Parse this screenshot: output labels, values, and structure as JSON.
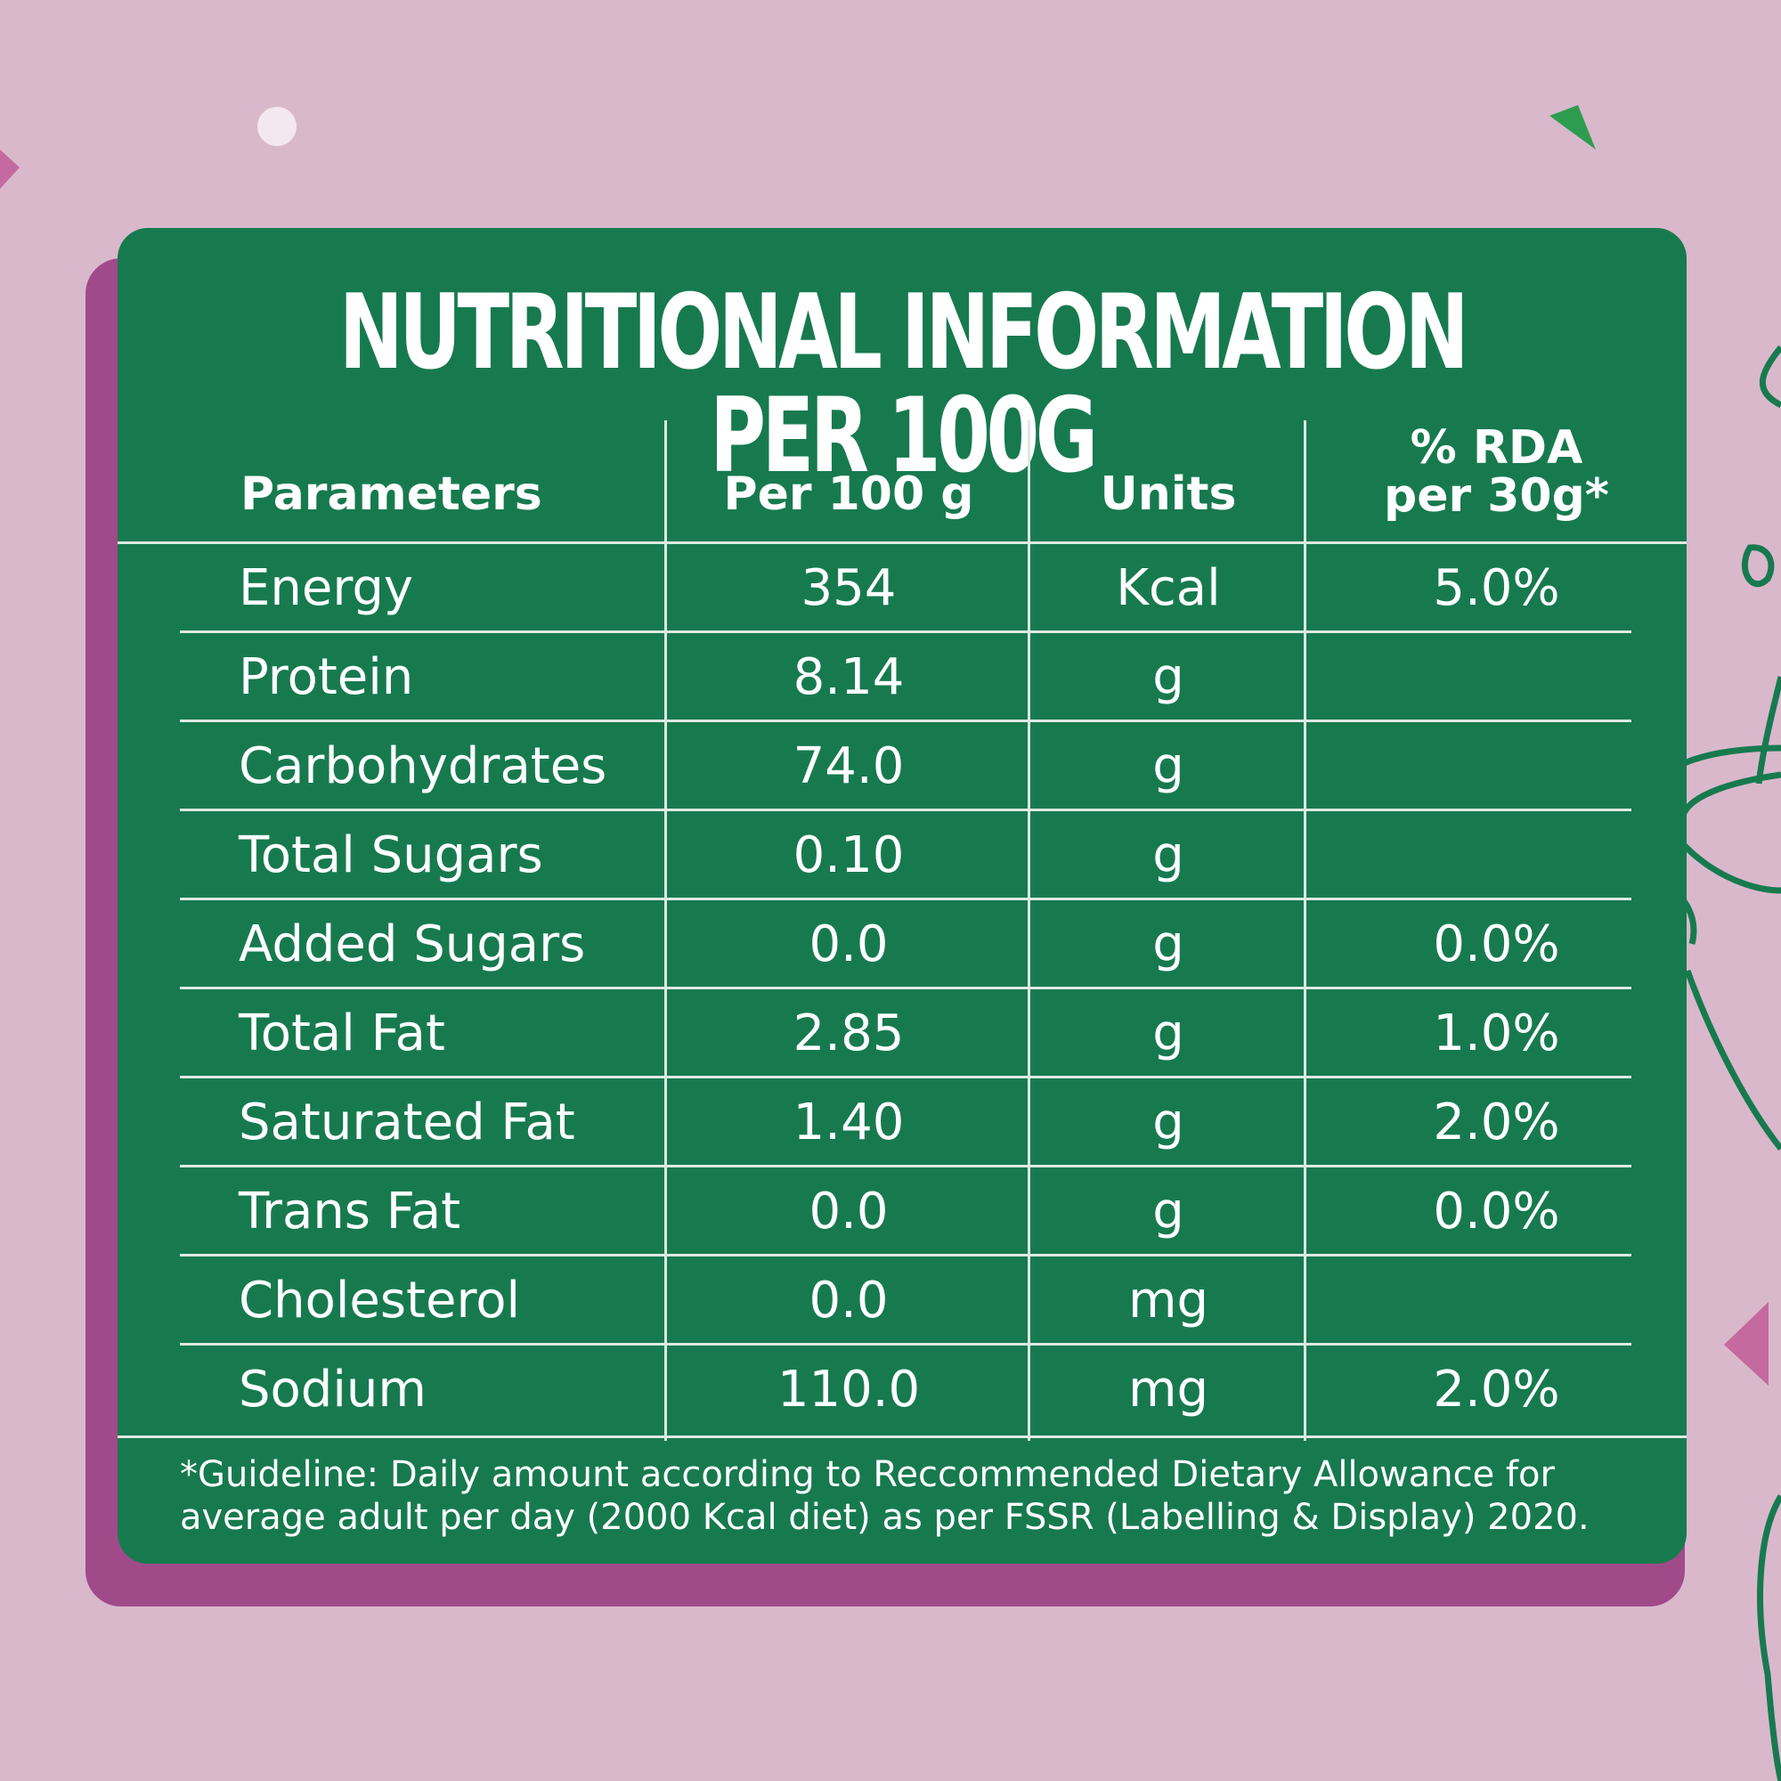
{
  "title": "NUTRITIONAL INFORMATION PER 100G",
  "columns": {
    "parameters": "Parameters",
    "per100": "Per 100 g",
    "units": "Units",
    "rda_line1": "% RDA",
    "rda_line2": "per 30g*"
  },
  "rows": [
    {
      "parameter": "Energy",
      "value": "354",
      "unit": "Kcal",
      "rda": "5.0%"
    },
    {
      "parameter": "Protein",
      "value": "8.14",
      "unit": "g",
      "rda": ""
    },
    {
      "parameter": "Carbohydrates",
      "value": "74.0",
      "unit": "g",
      "rda": ""
    },
    {
      "parameter": "Total Sugars",
      "value": "0.10",
      "unit": "g",
      "rda": ""
    },
    {
      "parameter": "Added Sugars",
      "value": "0.0",
      "unit": "g",
      "rda": "0.0%"
    },
    {
      "parameter": "Total Fat",
      "value": "2.85",
      "unit": "g",
      "rda": "1.0%"
    },
    {
      "parameter": "Saturated Fat",
      "value": "1.40",
      "unit": "g",
      "rda": "2.0%"
    },
    {
      "parameter": "Trans Fat",
      "value": "0.0",
      "unit": "g",
      "rda": "0.0%"
    },
    {
      "parameter": "Cholesterol",
      "value": "0.0",
      "unit": "mg",
      "rda": ""
    },
    {
      "parameter": "Sodium",
      "value": "110.0",
      "unit": "mg",
      "rda": "2.0%"
    }
  ],
  "footnote_line1": "*Guideline: Daily amount according to Reccommended Dietary Allowance for",
  "footnote_line2": "average adult per day (2000 Kcal diet) as per FSSR (Labelling & Display) 2020.",
  "colors": {
    "background": "#d9b8cc",
    "card": "#177a4f",
    "card_shadow": "#a04a8a",
    "text": "#ffffff",
    "grid_lines": "#dfe9e2"
  }
}
